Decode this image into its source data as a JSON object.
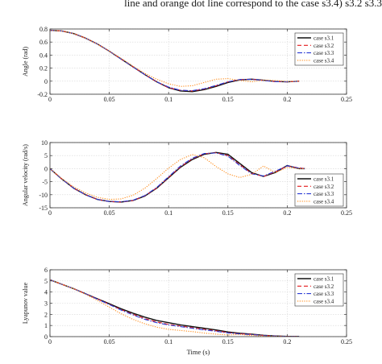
{
  "caption": "line and orange dot line correspond to the case s3.4) s3.2 s3.3",
  "styles": {
    "series": [
      {
        "color": "#111111",
        "dash": "",
        "width": 1.4
      },
      {
        "color": "#e41a1c",
        "dash": "5,3",
        "width": 1.1
      },
      {
        "color": "#2a3bd6",
        "dash": "6,2,1.5,2",
        "width": 1.1
      },
      {
        "color": "#ff8c1a",
        "dash": "1.2,1.6",
        "width": 1.1
      }
    ]
  },
  "chart_data": [
    {
      "type": "line",
      "xlabel": "",
      "ylabel": "Angle (rad)",
      "xlim": [
        0,
        0.25
      ],
      "ylim": [
        -0.2,
        0.8
      ],
      "xticks": [
        0,
        0.05,
        0.1,
        0.15,
        0.2,
        0.25
      ],
      "xtick_labels": [
        "0",
        "0.05",
        "0.1",
        "0.15",
        "0.2",
        "0.25"
      ],
      "yticks": [
        -0.2,
        0,
        0.2,
        0.4,
        0.6,
        0.8
      ],
      "ytick_labels": [
        "-0.2",
        "0",
        "0.2",
        "0.4",
        "0.6",
        "0.8"
      ],
      "grid": true,
      "legend": "top-right",
      "series": [
        {
          "name": "case s3.1",
          "x": [
            0,
            0.01,
            0.02,
            0.03,
            0.04,
            0.05,
            0.06,
            0.07,
            0.08,
            0.09,
            0.1,
            0.11,
            0.12,
            0.13,
            0.14,
            0.15,
            0.16,
            0.17,
            0.18,
            0.19,
            0.2,
            0.21
          ],
          "y": [
            0.78,
            0.77,
            0.73,
            0.66,
            0.57,
            0.46,
            0.34,
            0.22,
            0.1,
            -0.01,
            -0.1,
            -0.15,
            -0.16,
            -0.13,
            -0.08,
            -0.02,
            0.02,
            0.03,
            0.015,
            -0.005,
            -0.01,
            0.0
          ]
        },
        {
          "name": "case s3.2",
          "x": [
            0,
            0.01,
            0.02,
            0.03,
            0.04,
            0.05,
            0.06,
            0.07,
            0.08,
            0.09,
            0.1,
            0.11,
            0.12,
            0.13,
            0.14,
            0.15,
            0.16,
            0.17,
            0.18,
            0.19,
            0.2,
            0.21
          ],
          "y": [
            0.78,
            0.77,
            0.73,
            0.66,
            0.57,
            0.46,
            0.34,
            0.22,
            0.1,
            -0.01,
            -0.1,
            -0.14,
            -0.15,
            -0.12,
            -0.07,
            -0.01,
            0.025,
            0.03,
            0.012,
            -0.006,
            -0.01,
            0.0
          ]
        },
        {
          "name": "case s3.3",
          "x": [
            0,
            0.01,
            0.02,
            0.03,
            0.04,
            0.05,
            0.06,
            0.07,
            0.08,
            0.09,
            0.1,
            0.11,
            0.12,
            0.13,
            0.14,
            0.15,
            0.16,
            0.17,
            0.18,
            0.19,
            0.2,
            0.21
          ],
          "y": [
            0.78,
            0.77,
            0.73,
            0.66,
            0.57,
            0.46,
            0.34,
            0.22,
            0.1,
            -0.01,
            -0.09,
            -0.14,
            -0.145,
            -0.115,
            -0.065,
            -0.01,
            0.025,
            0.03,
            0.01,
            -0.006,
            -0.01,
            0.0
          ]
        },
        {
          "name": "case s3.4",
          "x": [
            0,
            0.01,
            0.02,
            0.03,
            0.04,
            0.05,
            0.06,
            0.07,
            0.08,
            0.09,
            0.1,
            0.11,
            0.12,
            0.13,
            0.14,
            0.15,
            0.16,
            0.17,
            0.18,
            0.19,
            0.2,
            0.21
          ],
          "y": [
            0.78,
            0.77,
            0.73,
            0.66,
            0.57,
            0.46,
            0.35,
            0.23,
            0.12,
            0.03,
            -0.04,
            -0.08,
            -0.07,
            -0.02,
            0.03,
            0.04,
            0.01,
            -0.01,
            0.015,
            0.01,
            -0.005,
            0.0
          ]
        }
      ]
    },
    {
      "type": "line",
      "xlabel": "",
      "ylabel": "Angular velocity (rad/s)",
      "xlim": [
        0,
        0.25
      ],
      "ylim": [
        -15,
        10
      ],
      "xticks": [
        0,
        0.05,
        0.1,
        0.15,
        0.2,
        0.25
      ],
      "xtick_labels": [
        "0",
        "0.05",
        "0.1",
        "0.15",
        "0.2",
        "0.25"
      ],
      "yticks": [
        -15,
        -10,
        -5,
        0,
        5,
        10
      ],
      "ytick_labels": [
        "-15",
        "-10",
        "-5",
        "0",
        "5",
        "10"
      ],
      "grid": true,
      "legend": "bottom-right",
      "series": [
        {
          "name": "case s3.1",
          "x": [
            0,
            0.01,
            0.02,
            0.03,
            0.04,
            0.05,
            0.06,
            0.07,
            0.08,
            0.09,
            0.1,
            0.11,
            0.12,
            0.13,
            0.14,
            0.15,
            0.16,
            0.17,
            0.18,
            0.19,
            0.2,
            0.21,
            0.215
          ],
          "y": [
            0,
            -4,
            -7.5,
            -10,
            -11.8,
            -12.6,
            -12.8,
            -12.2,
            -10.5,
            -7.5,
            -3.5,
            0.5,
            3.5,
            5.5,
            6.2,
            5.5,
            2,
            -1.5,
            -3,
            -1.5,
            1.2,
            0,
            0
          ]
        },
        {
          "name": "case s3.2",
          "x": [
            0,
            0.01,
            0.02,
            0.03,
            0.04,
            0.05,
            0.06,
            0.07,
            0.08,
            0.09,
            0.1,
            0.11,
            0.12,
            0.13,
            0.14,
            0.15,
            0.16,
            0.17,
            0.18,
            0.19,
            0.2,
            0.21,
            0.215
          ],
          "y": [
            0,
            -4,
            -7.5,
            -10,
            -11.8,
            -12.6,
            -12.8,
            -12.2,
            -10.4,
            -7.4,
            -3.3,
            0.7,
            3.8,
            5.7,
            6.1,
            5,
            1.5,
            -1.8,
            -3,
            -1.2,
            1.0,
            0.3,
            0
          ]
        },
        {
          "name": "case s3.3",
          "x": [
            0,
            0.01,
            0.02,
            0.03,
            0.04,
            0.05,
            0.06,
            0.07,
            0.08,
            0.09,
            0.1,
            0.11,
            0.12,
            0.13,
            0.14,
            0.15,
            0.16,
            0.17,
            0.18,
            0.19,
            0.2,
            0.21,
            0.215
          ],
          "y": [
            0,
            -4,
            -7.5,
            -10,
            -11.8,
            -12.6,
            -12.7,
            -12.1,
            -10.3,
            -7.2,
            -3.1,
            1,
            4,
            5.8,
            6,
            4.8,
            1.2,
            -2,
            -2.8,
            -1,
            1.1,
            0.2,
            0
          ]
        },
        {
          "name": "case s3.4",
          "x": [
            0,
            0.01,
            0.02,
            0.03,
            0.04,
            0.05,
            0.06,
            0.07,
            0.08,
            0.09,
            0.1,
            0.11,
            0.12,
            0.13,
            0.14,
            0.15,
            0.16,
            0.17,
            0.18,
            0.19,
            0.2,
            0.21,
            0.215
          ],
          "y": [
            0,
            -3.8,
            -7,
            -9.3,
            -11,
            -11.8,
            -11.6,
            -10.2,
            -7.5,
            -3.8,
            0.2,
            3.5,
            5.4,
            4.2,
            0.8,
            -2,
            -3.4,
            -2.2,
            1,
            -1.5,
            0.5,
            0,
            0
          ]
        }
      ]
    },
    {
      "type": "line",
      "xlabel": "Time (s)",
      "ylabel": "Lyapunov value",
      "xlim": [
        0,
        0.25
      ],
      "ylim": [
        0,
        6
      ],
      "xticks": [
        0,
        0.05,
        0.1,
        0.15,
        0.2,
        0.25
      ],
      "xtick_labels": [
        "0",
        "0.05",
        "0.1",
        "0.15",
        "0.2",
        "0.25"
      ],
      "yticks": [
        0,
        1,
        2,
        3,
        4,
        5,
        6
      ],
      "ytick_labels": [
        "0",
        "1",
        "2",
        "3",
        "4",
        "5",
        "6"
      ],
      "grid": true,
      "legend": "top-right",
      "series": [
        {
          "name": "case s3.1",
          "x": [
            0,
            0.01,
            0.02,
            0.03,
            0.04,
            0.05,
            0.06,
            0.07,
            0.08,
            0.09,
            0.1,
            0.11,
            0.12,
            0.13,
            0.14,
            0.15,
            0.16,
            0.17,
            0.18,
            0.19,
            0.2,
            0.21
          ],
          "y": [
            5.1,
            4.7,
            4.3,
            3.85,
            3.4,
            2.95,
            2.5,
            2.1,
            1.75,
            1.45,
            1.25,
            1.05,
            0.9,
            0.75,
            0.6,
            0.42,
            0.3,
            0.22,
            0.12,
            0.06,
            0.02,
            0.01
          ]
        },
        {
          "name": "case s3.2",
          "x": [
            0,
            0.01,
            0.02,
            0.03,
            0.04,
            0.05,
            0.06,
            0.07,
            0.08,
            0.09,
            0.1,
            0.11,
            0.12,
            0.13,
            0.14,
            0.15,
            0.16,
            0.17,
            0.18,
            0.19,
            0.2,
            0.21
          ],
          "y": [
            5.1,
            4.7,
            4.3,
            3.85,
            3.38,
            2.9,
            2.42,
            2.0,
            1.62,
            1.32,
            1.1,
            0.95,
            0.8,
            0.65,
            0.52,
            0.36,
            0.26,
            0.2,
            0.1,
            0.05,
            0.02,
            0.01
          ]
        },
        {
          "name": "case s3.3",
          "x": [
            0,
            0.01,
            0.02,
            0.03,
            0.04,
            0.05,
            0.06,
            0.07,
            0.08,
            0.09,
            0.1,
            0.11,
            0.12,
            0.13,
            0.14,
            0.15,
            0.16,
            0.17,
            0.18,
            0.19,
            0.2,
            0.21
          ],
          "y": [
            5.1,
            4.7,
            4.3,
            3.84,
            3.36,
            2.88,
            2.38,
            1.95,
            1.55,
            1.25,
            1.05,
            0.9,
            0.75,
            0.6,
            0.48,
            0.33,
            0.24,
            0.18,
            0.1,
            0.05,
            0.02,
            0.01
          ]
        },
        {
          "name": "case s3.4",
          "x": [
            0,
            0.01,
            0.02,
            0.03,
            0.04,
            0.05,
            0.06,
            0.07,
            0.08,
            0.09,
            0.1,
            0.11,
            0.12,
            0.13,
            0.14,
            0.15,
            0.16,
            0.17,
            0.18,
            0.19,
            0.2,
            0.21
          ],
          "y": [
            5.1,
            4.7,
            4.3,
            3.8,
            3.25,
            2.65,
            2.05,
            1.55,
            1.15,
            0.85,
            0.65,
            0.55,
            0.45,
            0.32,
            0.22,
            0.15,
            0.2,
            0.1,
            0.06,
            0.03,
            0.01,
            0.0
          ]
        }
      ]
    }
  ]
}
